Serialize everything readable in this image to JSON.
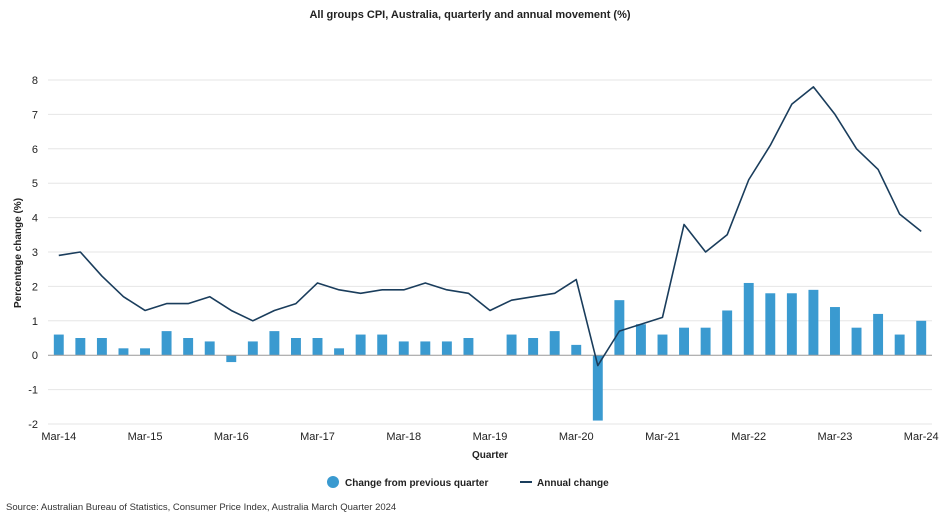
{
  "chart_data": {
    "type": "bar",
    "title": "All groups CPI, Australia, quarterly and annual movement (%)",
    "xlabel": "Quarter",
    "ylabel": "Percentage change (%)",
    "ylim": [
      -2,
      8
    ],
    "yticks": [
      -2,
      -1,
      0,
      1,
      2,
      3,
      4,
      5,
      6,
      7,
      8
    ],
    "xtick_labels": [
      "Mar-14",
      "Mar-15",
      "Mar-16",
      "Mar-17",
      "Mar-18",
      "Mar-19",
      "Mar-20",
      "Mar-21",
      "Mar-22",
      "Mar-23",
      "Mar-24"
    ],
    "xtick_every": 4,
    "grid": true,
    "legend_position": "bottom-center",
    "colors": {
      "bar": "#3a9ad0",
      "line": "#1a3d5c",
      "grid": "#e6e6e6",
      "zero": "#999999"
    },
    "series": [
      {
        "name": "Change from previous quarter",
        "type": "bar",
        "values": [
          0.6,
          0.5,
          0.5,
          0.2,
          0.2,
          0.7,
          0.5,
          0.4,
          -0.2,
          0.4,
          0.7,
          0.5,
          0.5,
          0.2,
          0.6,
          0.6,
          0.4,
          0.4,
          0.4,
          0.5,
          0.0,
          0.6,
          0.5,
          0.7,
          0.3,
          -1.9,
          1.6,
          0.9,
          0.6,
          0.8,
          0.8,
          1.3,
          2.1,
          1.8,
          1.8,
          1.9,
          1.4,
          0.8,
          1.2,
          0.6,
          1.0
        ]
      },
      {
        "name": "Annual change",
        "type": "line",
        "values": [
          2.9,
          3.0,
          2.3,
          1.7,
          1.3,
          1.5,
          1.5,
          1.7,
          1.3,
          1.0,
          1.3,
          1.5,
          2.1,
          1.9,
          1.8,
          1.9,
          1.9,
          2.1,
          1.9,
          1.8,
          1.3,
          1.6,
          1.7,
          1.8,
          2.2,
          -0.3,
          0.7,
          0.9,
          1.1,
          3.8,
          3.0,
          3.5,
          5.1,
          6.1,
          7.3,
          7.8,
          7.0,
          6.0,
          5.4,
          4.1,
          3.6
        ]
      }
    ]
  },
  "source_note": "Source: Australian Bureau of Statistics, Consumer Price Index, Australia March Quarter 2024"
}
